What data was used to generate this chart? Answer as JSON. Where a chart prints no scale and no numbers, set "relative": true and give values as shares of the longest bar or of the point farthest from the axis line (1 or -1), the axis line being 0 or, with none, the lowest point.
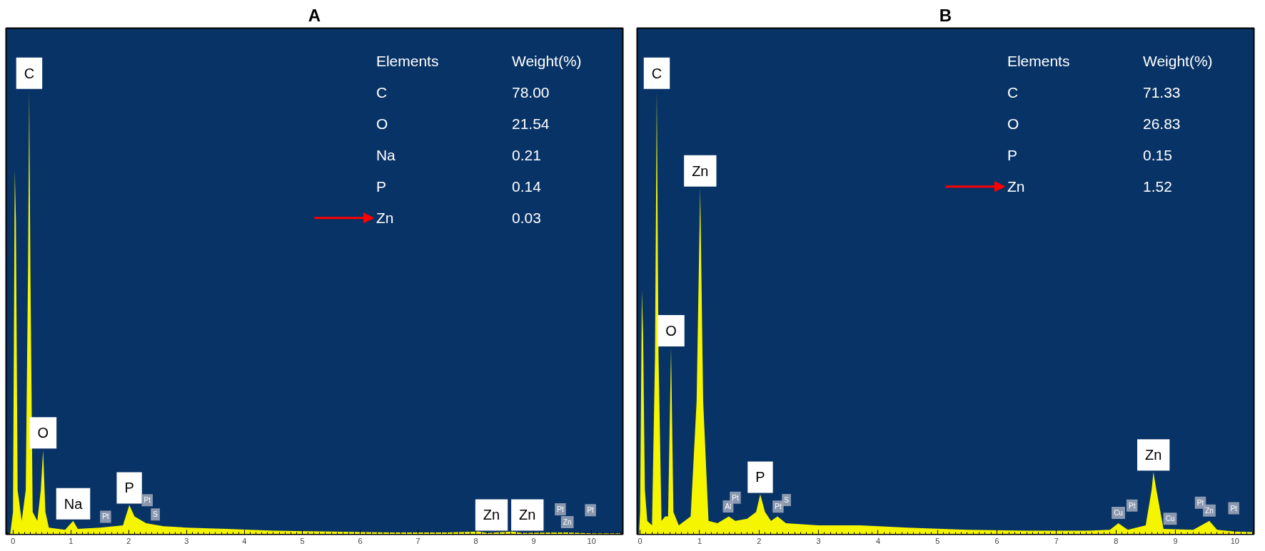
{
  "chart_data": [
    {
      "type": "area",
      "title": "A",
      "relative": true,
      "xlim": [
        -0.12,
        10.54
      ],
      "xticks": [
        0,
        1,
        2,
        3,
        4,
        5,
        6,
        7,
        8,
        9,
        10
      ],
      "x": [
        -0.05,
        0.0,
        0.03,
        0.05,
        0.08,
        0.15,
        0.22,
        0.26,
        0.28,
        0.3,
        0.34,
        0.42,
        0.48,
        0.52,
        0.56,
        0.62,
        0.9,
        1.04,
        1.12,
        1.5,
        1.9,
        2.01,
        2.1,
        2.3,
        2.6,
        3.0,
        3.7,
        4.5,
        5.5,
        6.5,
        7.5,
        8.05,
        8.2,
        8.63,
        8.8,
        9.57,
        10.0,
        10.5
      ],
      "series": [
        {
          "color": "#f5f500",
          "values": [
            0,
            0.05,
            0.82,
            0.71,
            0.1,
            0.03,
            0.1,
            0.6,
            1.0,
            0.6,
            0.05,
            0.03,
            0.1,
            0.19,
            0.05,
            0.015,
            0.01,
            0.03,
            0.012,
            0.015,
            0.02,
            0.066,
            0.04,
            0.025,
            0.018,
            0.015,
            0.012,
            0.008,
            0.006,
            0.004,
            0.004,
            0.006,
            0.003,
            0.006,
            0.003,
            0.004,
            0.002,
            0.002
          ]
        }
      ],
      "annotations": [
        "Elements",
        "Weight(%)",
        "C",
        "78.00",
        "O",
        "21.54",
        "Na",
        "0.21",
        "P",
        "0.14",
        "Zn",
        "0.03",
        {
          "text": "C",
          "x": 0.28,
          "y": 1.0
        },
        {
          "text": "O",
          "x": 0.52,
          "y": 0.19
        },
        {
          "text": "Na",
          "x": 1.04,
          "y": 0.03
        },
        {
          "text": "P",
          "x": 2.01,
          "y": 0.066
        },
        {
          "text": "Zn",
          "x": 8.27,
          "y": 0.005
        },
        {
          "text": "Zn",
          "x": 8.89,
          "y": 0.005
        },
        {
          "text": "Pt",
          "x": 1.6
        },
        {
          "text": "Pt",
          "x": 2.32
        },
        {
          "text": "S",
          "x": 2.46
        },
        {
          "text": "Pt",
          "x": 9.46
        },
        {
          "text": "Zn",
          "x": 9.58
        },
        {
          "text": "Pt",
          "x": 9.98
        }
      ]
    },
    {
      "type": "area",
      "title": "B",
      "relative": true,
      "xlim": [
        -0.05,
        10.32
      ],
      "xticks": [
        0,
        1,
        2,
        3,
        4,
        5,
        6,
        7,
        8,
        9,
        10
      ],
      "x": [
        -0.02,
        0.0,
        0.03,
        0.05,
        0.08,
        0.12,
        0.2,
        0.25,
        0.28,
        0.31,
        0.36,
        0.42,
        0.47,
        0.52,
        0.56,
        0.65,
        0.85,
        0.95,
        1.01,
        1.06,
        1.15,
        1.3,
        1.49,
        1.6,
        1.8,
        1.95,
        2.02,
        2.1,
        2.2,
        2.31,
        2.45,
        3.0,
        3.7,
        4.5,
        5.5,
        6.5,
        7.5,
        7.9,
        8.04,
        8.2,
        8.5,
        8.6,
        8.63,
        8.68,
        8.8,
        9.3,
        9.57,
        9.7,
        10.0,
        10.3
      ],
      "series": [
        {
          "color": "#f5f500",
          "values": [
            0,
            0.05,
            0.55,
            0.45,
            0.1,
            0.03,
            0.02,
            0.4,
            1.0,
            0.4,
            0.03,
            0.04,
            0.04,
            0.42,
            0.05,
            0.02,
            0.04,
            0.3,
            0.78,
            0.3,
            0.03,
            0.025,
            0.04,
            0.03,
            0.035,
            0.05,
            0.09,
            0.05,
            0.03,
            0.04,
            0.025,
            0.02,
            0.02,
            0.015,
            0.01,
            0.008,
            0.008,
            0.01,
            0.025,
            0.01,
            0.02,
            0.1,
            0.14,
            0.1,
            0.012,
            0.01,
            0.03,
            0.01,
            0.006,
            0.005
          ]
        }
      ],
      "annotations": [
        "Elements",
        "Weight(%)",
        "C",
        "71.33",
        "O",
        "26.83",
        "P",
        "0.15",
        "Zn",
        "1.52",
        {
          "text": "C",
          "x": 0.28,
          "y": 1.0
        },
        {
          "text": "O",
          "x": 0.52,
          "y": 0.42
        },
        {
          "text": "Zn",
          "x": 1.01,
          "y": 0.78
        },
        {
          "text": "P",
          "x": 2.02,
          "y": 0.09
        },
        {
          "text": "Zn",
          "x": 8.63,
          "y": 0.14
        },
        {
          "text": "Al",
          "x": 1.48
        },
        {
          "text": "Pt",
          "x": 1.6
        },
        {
          "text": "Pt",
          "x": 2.32
        },
        {
          "text": "S",
          "x": 2.46
        },
        {
          "text": "Cu",
          "x": 8.04
        },
        {
          "text": "Pt",
          "x": 8.27
        },
        {
          "text": "Cu",
          "x": 8.91
        },
        {
          "text": "Pt",
          "x": 9.42
        },
        {
          "text": "Zn",
          "x": 9.57
        },
        {
          "text": "Pt",
          "x": 9.98
        }
      ]
    }
  ]
}
